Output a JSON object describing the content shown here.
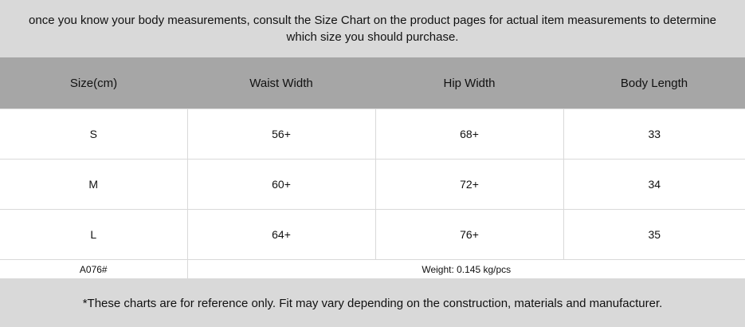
{
  "header_note": "once you know your body measurements, consult the Size Chart on the product pages for actual item measurements to determine which size you should purchase.",
  "table": {
    "columns": [
      "Size(cm)",
      "Waist Width",
      "Hip Width",
      "Body Length"
    ],
    "rows": [
      [
        "S",
        "56+",
        "68+",
        "33"
      ],
      [
        "M",
        "60+",
        "72+",
        "34"
      ],
      [
        "L",
        "64+",
        "76+",
        "35"
      ]
    ],
    "model_code": "A076#",
    "weight": "Weight: 0.145 kg/pcs"
  },
  "footer_note": "*These charts are for reference only. Fit may vary depending on the construction, materials and manufacturer."
}
